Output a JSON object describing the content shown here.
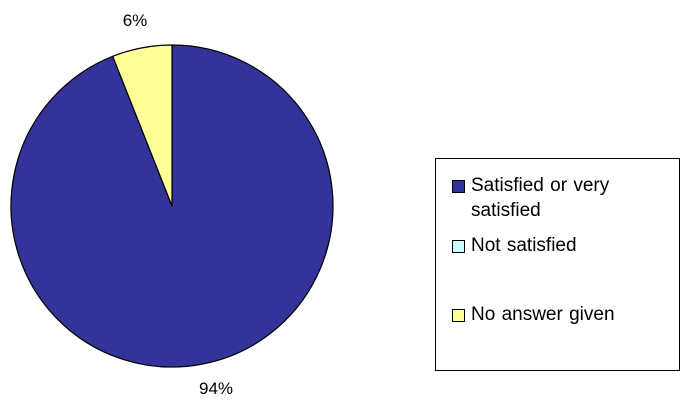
{
  "chart_data": {
    "type": "pie",
    "categories": [
      "Satisfied or very satisfied",
      "Not satisfied",
      "No answer given"
    ],
    "values": [
      94,
      0,
      6
    ],
    "data_labels": [
      "94%",
      "",
      "6%"
    ],
    "colors": [
      "#333399",
      "#ccffff",
      "#ffff99"
    ],
    "legend_position": "right"
  },
  "legend": {
    "items": [
      {
        "label": "Satisfied or very satisfied",
        "color": "#333399"
      },
      {
        "label": "Not satisfied",
        "color": "#ccffff"
      },
      {
        "label": "No answer given",
        "color": "#ffff99"
      }
    ]
  }
}
